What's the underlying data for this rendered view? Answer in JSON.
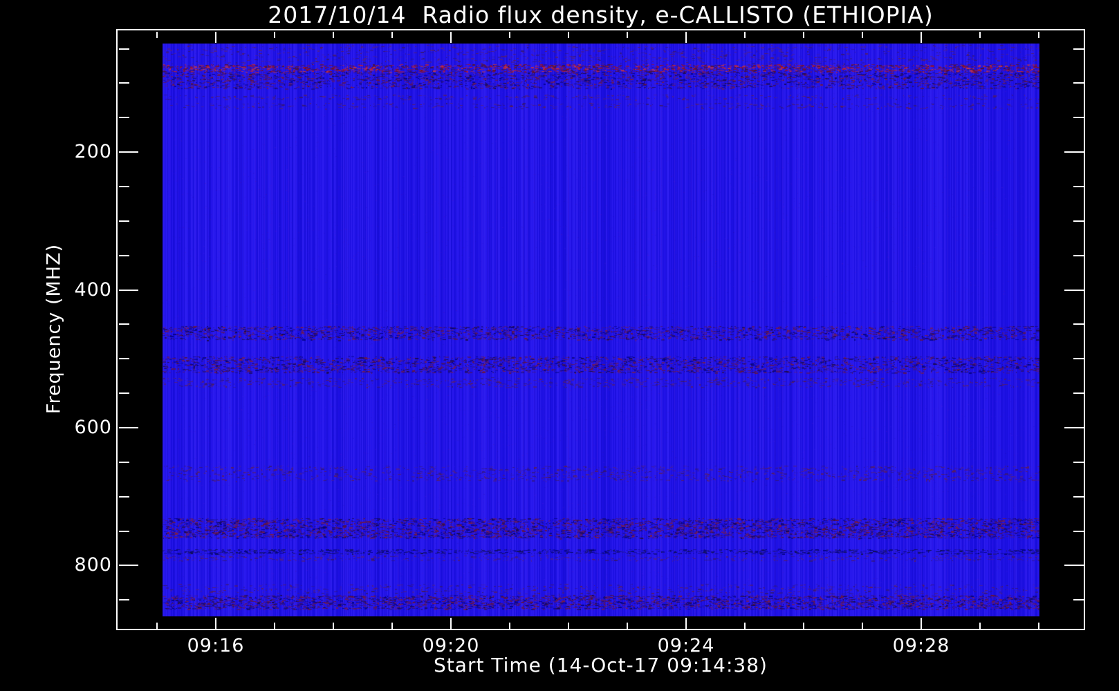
{
  "window": {
    "background_color": "#000000",
    "foreground_color": "#ffffff"
  },
  "chart_data": {
    "type": "heatmap",
    "title": "2017/10/14  Radio flux density, e-CALLISTO (ETHIOPIA)",
    "xlabel": "Start Time (14-Oct-17 09:14:38)",
    "ylabel": "Frequency (MHZ)",
    "date": "2017/10/14",
    "instrument": "e-CALLISTO",
    "station": "ETHIOPIA",
    "start_time": "09:14:38",
    "x_ticks": [
      "09:16",
      "09:20",
      "09:24",
      "09:28"
    ],
    "x_minor_tick_interval": "1 minute",
    "y_ticks": [
      "200",
      "400",
      "600",
      "800"
    ],
    "y_minor_tick_interval_mhz": 50,
    "y_axis_inverted": true,
    "freq_range_mhz": [
      45,
      870
    ],
    "legend": "none",
    "grid": "off",
    "description": "Quiet-Sun radio spectrogram: nearly uniform blue background (no solar burst) with horizontal terrestrial RFI speckle bands.",
    "base_color": "#2213ec",
    "column_noise_colors": {
      "dark": "#0000aa",
      "light": "#6450ff",
      "purple": "#823cbe"
    },
    "palettes": {
      "red": [
        "#a01225",
        "#c22030",
        "#7c1028",
        "#58121c",
        "#d43838",
        "#3a0f50"
      ],
      "mix": [
        "#6a1438",
        "#4a1478",
        "#2c0e60",
        "#000082",
        "#801c40",
        "#18084a"
      ],
      "navy": [
        "#000078",
        "#0c0a66",
        "#241690",
        "#10104a"
      ],
      "faint": [
        "#50208a",
        "#5c1c58",
        "#341670"
      ]
    },
    "rfi_bands": [
      {
        "freq_mhz": [
          45,
          72
        ],
        "intensity": 0.1,
        "palette": "faint"
      },
      {
        "freq_mhz": [
          73,
          84
        ],
        "intensity": 0.52,
        "palette": "red"
      },
      {
        "freq_mhz": [
          84,
          96
        ],
        "intensity": 0.38,
        "palette": "mix"
      },
      {
        "freq_mhz": [
          96,
          108
        ],
        "intensity": 0.32,
        "palette": "mix"
      },
      {
        "freq_mhz": [
          117,
          124
        ],
        "intensity": 0.13,
        "palette": "faint"
      },
      {
        "freq_mhz": [
          129,
          137
        ],
        "intensity": 0.13,
        "palette": "faint"
      },
      {
        "freq_mhz": [
          453,
          473
        ],
        "intensity": 0.36,
        "palette": "mix"
      },
      {
        "freq_mhz": [
          497,
          521
        ],
        "intensity": 0.36,
        "palette": "mix"
      },
      {
        "freq_mhz": [
          528,
          542
        ],
        "intensity": 0.15,
        "palette": "faint"
      },
      {
        "freq_mhz": [
          656,
          678
        ],
        "intensity": 0.15,
        "palette": "faint"
      },
      {
        "freq_mhz": [
          732,
          761
        ],
        "intensity": 0.46,
        "palette": "mix"
      },
      {
        "freq_mhz": [
          777,
          784
        ],
        "intensity": 0.42,
        "palette": "navy"
      },
      {
        "freq_mhz": [
          786,
          794
        ],
        "intensity": 0.16,
        "palette": "faint"
      },
      {
        "freq_mhz": [
          828,
          842
        ],
        "intensity": 0.12,
        "palette": "faint"
      },
      {
        "freq_mhz": [
          844,
          864
        ],
        "intensity": 0.52,
        "palette": "mix"
      }
    ]
  }
}
